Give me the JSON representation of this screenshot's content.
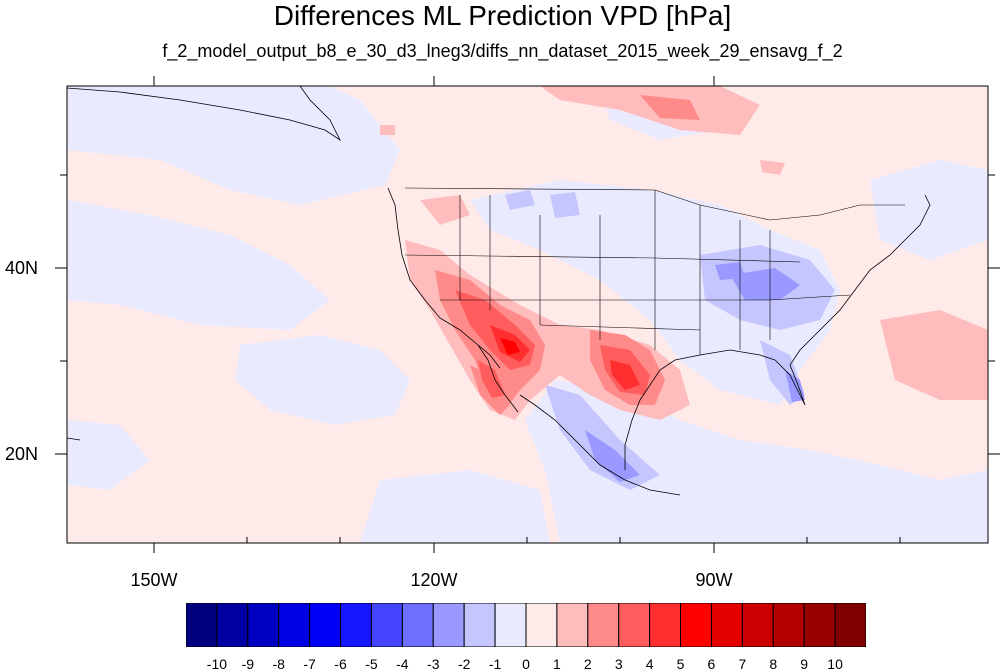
{
  "title": "Differences ML Prediction VPD [hPa]",
  "subtitle": "f_2_model_output_b8_e_30_d3_lneg3/diffs_nn_dataset_2015_week_29_ensavg_f_2",
  "axes": {
    "x_ticks": [
      "150W",
      "120W",
      "90W"
    ],
    "y_ticks": [
      "40N",
      "20N"
    ]
  },
  "colorbar": {
    "labels": [
      "-10",
      "-9",
      "-8",
      "-7",
      "-6",
      "-5",
      "-4",
      "-3",
      "-2",
      "-1",
      "0",
      "1",
      "2",
      "3",
      "4",
      "5",
      "6",
      "7",
      "8",
      "9",
      "10"
    ],
    "colors": [
      "#00007f",
      "#0000a2",
      "#0000c3",
      "#0000e5",
      "#0000f8",
      "#1616ff",
      "#4545ff",
      "#6e6eff",
      "#9999ff",
      "#c6c6ff",
      "#eaeaff",
      "#ffeaea",
      "#ffbcbc",
      "#ff8a8a",
      "#ff5d5d",
      "#ff2f2f",
      "#ff0000",
      "#e50000",
      "#cc0000",
      "#b20000",
      "#990000",
      "#7f0000"
    ]
  },
  "map": {
    "lon_range": [
      -161,
      -62
    ],
    "lat_range": [
      11,
      60
    ],
    "background_color": "#ffeaea"
  }
}
